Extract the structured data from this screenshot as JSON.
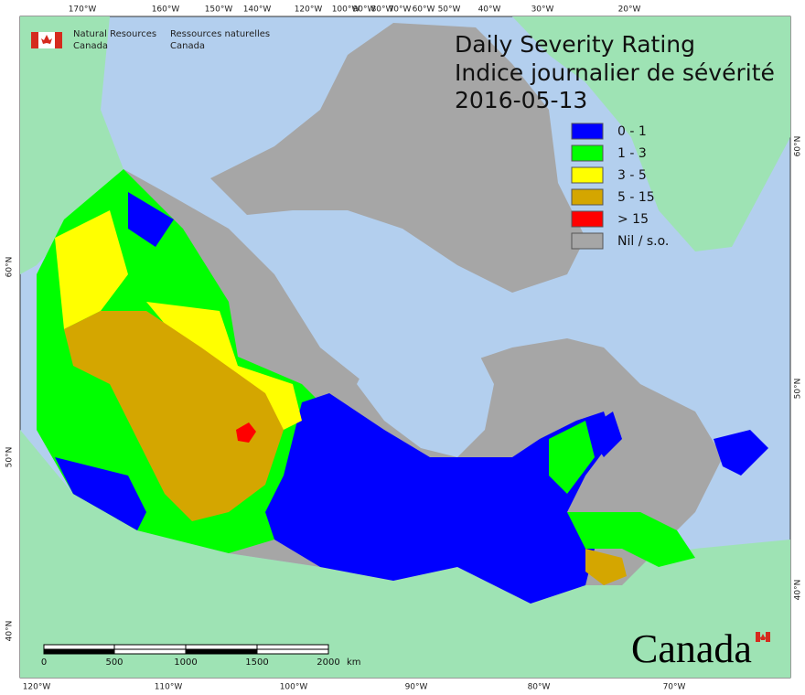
{
  "agency": {
    "english": [
      "Natural Resources",
      "Canada"
    ],
    "french": [
      "Ressources naturelles",
      "Canada"
    ]
  },
  "title": {
    "english": "Daily Severity Rating",
    "french": "Indice journalier de sévérité",
    "date": "2016-05-13"
  },
  "legend": [
    {
      "label": "0 - 1",
      "color": "#0000ff"
    },
    {
      "label": "1 - 3",
      "color": "#00ff00"
    },
    {
      "label": "3 - 5",
      "color": "#ffff00"
    },
    {
      "label": "5 - 15",
      "color": "#d4a600"
    },
    {
      "label": "> 15",
      "color": "#ff0000"
    },
    {
      "label": "Nil / s.o.",
      "color": "#a6a6a6"
    }
  ],
  "graticule": {
    "top": [
      "170°W",
      "160°W",
      "150°W",
      "140°W",
      "120°W",
      "100°W",
      "90°W",
      "80°W",
      "70°W",
      "60°W",
      "50°W",
      "40°W",
      "30°W",
      "20°W"
    ],
    "bottom": [
      "120°W",
      "110°W",
      "100°W",
      "90°W",
      "80°W",
      "70°W"
    ],
    "left": [
      "60°N",
      "50°N",
      "40°N"
    ],
    "right": [
      "60°N",
      "50°N",
      "40°N"
    ]
  },
  "scale_bar": {
    "labels": [
      "0",
      "500",
      "1000",
      "1500",
      "2000"
    ],
    "unit": "km"
  },
  "wordmark": "Canada"
}
